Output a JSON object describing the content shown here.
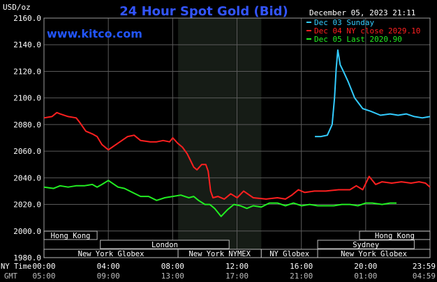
{
  "chart_data": {
    "type": "line",
    "title": "24 Hour Spot Gold (Bid)",
    "watermark": "www.kitco.com",
    "date_label": "December 05, 2023 21:11",
    "ylabel": "USD/oz",
    "ylim": [
      1980,
      2160
    ],
    "yticks": [
      "2160.0",
      "2140.0",
      "2120.0",
      "2100.0",
      "2080.0",
      "2060.0",
      "2040.0",
      "2020.0",
      "2000.0",
      "1980.0"
    ],
    "x_axis_caption_ny": "NY Time",
    "x_axis_caption_gmt": "GMT",
    "x_hours": [
      0,
      23.98
    ],
    "xticks_ny": [
      "00:00",
      "04:00",
      "08:00",
      "12:00",
      "16:00",
      "20:00",
      "23:59"
    ],
    "xticks_gmt": [
      "05:00",
      "09:00",
      "13:00",
      "17:00",
      "21:00",
      "01:00",
      "04:59"
    ],
    "shaded_hours": [
      8.33,
      13.5
    ],
    "sessions": [
      {
        "label": "Hong Kong",
        "start": 0.0,
        "end": 3.3
      },
      {
        "label": "Hong Kong",
        "start": 19.6,
        "end": 23.98
      },
      {
        "label": "London",
        "start": 3.5,
        "end": 11.5
      },
      {
        "label": "Sydney",
        "start": 17.0,
        "end": 23.0
      },
      {
        "label": "New York Globex",
        "start": 0.0,
        "end": 8.33
      },
      {
        "label": "New York NYMEX",
        "start": 8.33,
        "end": 13.5
      },
      {
        "label": "NY Globex",
        "start": 13.5,
        "end": 17.0
      },
      {
        "label": "New York Globex",
        "start": 17.0,
        "end": 23.98
      }
    ],
    "series": [
      {
        "name": "Dec 03 Sunday",
        "color": "#33ccff",
        "x": [
          16.83,
          17.2,
          17.6,
          17.9,
          18.05,
          18.15,
          18.25,
          18.4,
          18.6,
          18.9,
          19.3,
          19.8,
          20.3,
          20.9,
          21.5,
          22.0,
          22.5,
          23.0,
          23.5,
          23.98
        ],
        "y": [
          2071,
          2071,
          2072,
          2080,
          2100,
          2122,
          2136,
          2125,
          2120,
          2112,
          2100,
          2092,
          2090,
          2087,
          2088,
          2087,
          2088,
          2086,
          2085,
          2086
        ]
      },
      {
        "name": "Dec 04 NY close 2029.10",
        "color": "#ff2020",
        "x": [
          0,
          0.5,
          0.8,
          1.0,
          1.5,
          2.0,
          2.2,
          2.6,
          3.0,
          3.3,
          3.6,
          4.0,
          4.6,
          5.2,
          5.6,
          6.0,
          6.6,
          7.0,
          7.4,
          7.8,
          8.0,
          8.3,
          8.6,
          8.9,
          9.1,
          9.3,
          9.5,
          9.8,
          10.05,
          10.2,
          10.35,
          10.5,
          10.8,
          11.2,
          11.6,
          12.0,
          12.4,
          13.0,
          13.8,
          14.5,
          15.0,
          15.4,
          15.8,
          16.2,
          16.8,
          17.5,
          18.3,
          19.0,
          19.4,
          19.8,
          20.2,
          20.6,
          21.0,
          21.6,
          22.2,
          22.8,
          23.3,
          23.7,
          23.98
        ],
        "y": [
          2085,
          2086,
          2089,
          2088,
          2086,
          2085,
          2082,
          2075,
          2073,
          2071,
          2065,
          2061,
          2066,
          2071,
          2072,
          2068,
          2067,
          2067,
          2068,
          2067,
          2070,
          2066,
          2063,
          2058,
          2053,
          2048,
          2046,
          2050,
          2050,
          2045,
          2030,
          2025,
          2026,
          2024,
          2028,
          2025,
          2030,
          2025,
          2024,
          2025,
          2024,
          2027,
          2031,
          2029,
          2030,
          2030,
          2031,
          2031,
          2034,
          2031,
          2041,
          2035,
          2037,
          2036,
          2037,
          2036,
          2037,
          2036,
          2033
        ]
      },
      {
        "name": "Dec 05 Last 2020.90",
        "color": "#22ee22",
        "x": [
          0,
          0.6,
          1.0,
          1.5,
          2.0,
          2.5,
          3.0,
          3.3,
          3.6,
          4.0,
          4.6,
          5.0,
          5.5,
          6.0,
          6.5,
          7.0,
          7.5,
          8.0,
          8.5,
          9.0,
          9.3,
          9.6,
          10.0,
          10.3,
          10.6,
          11.0,
          11.4,
          11.8,
          12.2,
          12.6,
          13.0,
          13.5,
          14.0,
          14.5,
          15.0,
          15.5,
          16.0,
          16.5,
          17.0,
          17.5,
          18.0,
          18.5,
          19.0,
          19.5,
          20.0,
          20.4,
          21.0,
          21.5,
          21.9
        ],
        "y": [
          2033,
          2032,
          2034,
          2033,
          2034,
          2034,
          2035,
          2033,
          2035,
          2038,
          2033,
          2032,
          2029,
          2026,
          2026,
          2023,
          2025,
          2026,
          2027,
          2025,
          2026,
          2023,
          2020,
          2020,
          2017,
          2011,
          2016,
          2020,
          2019,
          2017,
          2019,
          2018,
          2021,
          2021,
          2019,
          2021,
          2019,
          2020,
          2019,
          2019,
          2019,
          2020,
          2020,
          2019,
          2021,
          2021,
          2020,
          2021,
          2021
        ]
      }
    ]
  }
}
